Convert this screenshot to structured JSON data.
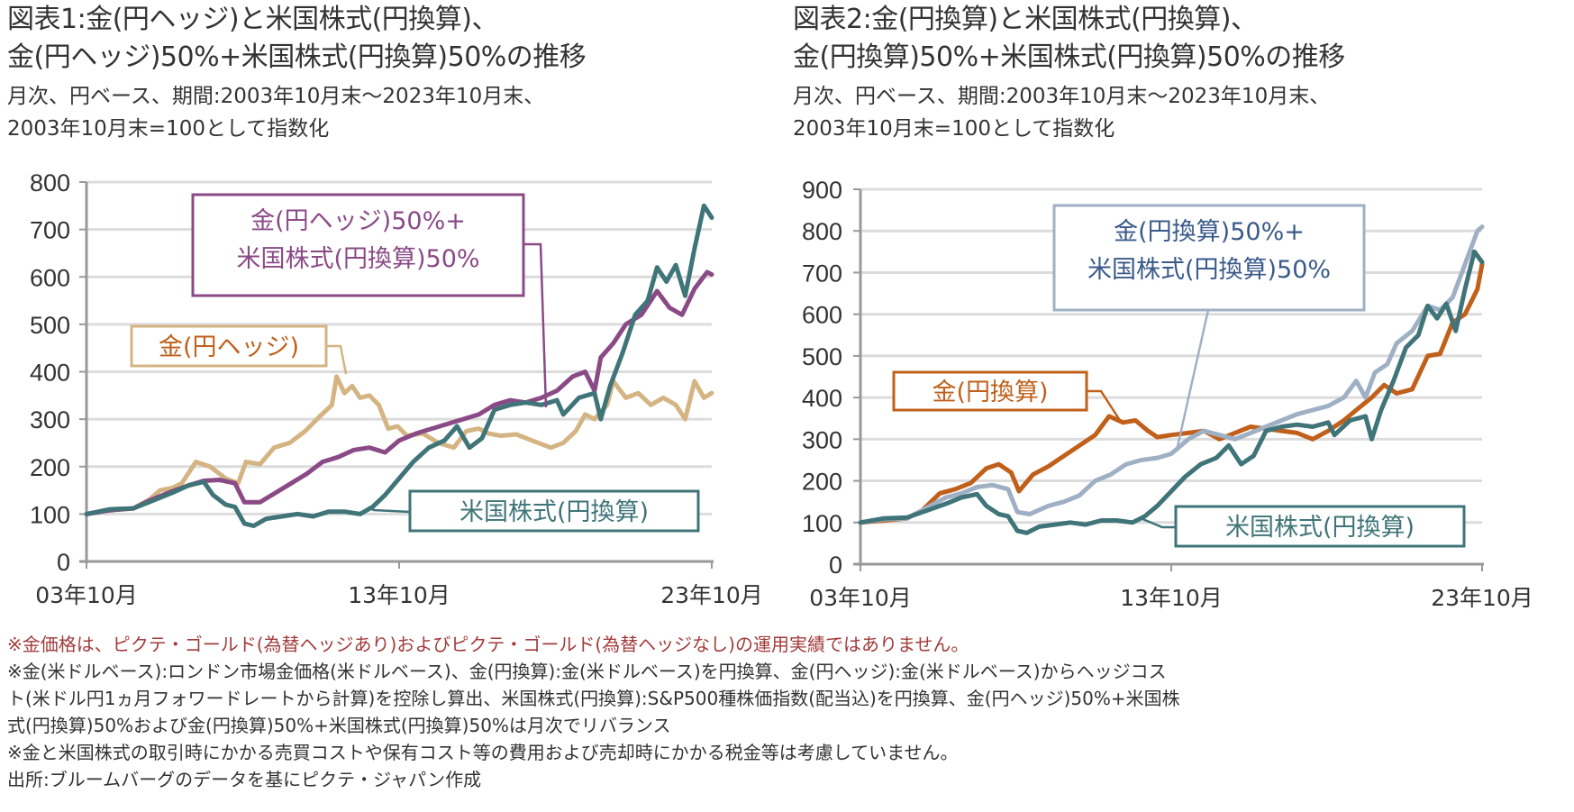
{
  "chart_data": [
    {
      "type": "line",
      "title": "図表1:金(円ヘッジ)と米国株式(円換算)、金(円ヘッジ)50%+米国株式(円換算)50%の推移",
      "title_lines": [
        "図表1:金(円ヘッジ)と米国株式(円換算)、",
        "金(円ヘッジ)50%+米国株式(円換算)50%の推移"
      ],
      "subtitle_lines": [
        "月次、円ベース、期間:2003年10月末〜2023年10月末、",
        "2003年10月末=100として指数化"
      ],
      "xlabel": "",
      "ylabel": "",
      "ylim": [
        0,
        800
      ],
      "yticks": [
        0,
        100,
        200,
        300,
        400,
        500,
        600,
        700,
        800
      ],
      "xlim": [
        2003.75,
        2023.75
      ],
      "xticks": [
        {
          "x": 2003.75,
          "label": "03年10月"
        },
        {
          "x": 2013.75,
          "label": "13年10月"
        },
        {
          "x": 2023.75,
          "label": "23年10月"
        }
      ],
      "grid": true,
      "series": [
        {
          "name": "金(円ヘッジ)",
          "color": "#d4b483",
          "label_lines": [
            "金(円ヘッジ)"
          ],
          "label_text_color": "#c0601a",
          "x": [
            2003.75,
            2004.5,
            2005.25,
            2005.75,
            2006.1,
            2006.5,
            2006.8,
            2007.25,
            2007.7,
            2008.2,
            2008.6,
            2008.85,
            2009.3,
            2009.75,
            2010.25,
            2010.75,
            2011.2,
            2011.6,
            2011.75,
            2012.0,
            2012.25,
            2012.5,
            2012.8,
            2013.1,
            2013.4,
            2013.7,
            2014.0,
            2014.5,
            2015.0,
            2015.5,
            2015.9,
            2016.3,
            2016.6,
            2017.0,
            2017.5,
            2018.0,
            2018.6,
            2019.0,
            2019.4,
            2019.7,
            2020.0,
            2020.4,
            2020.6,
            2021.0,
            2021.4,
            2021.8,
            2022.2,
            2022.6,
            2022.9,
            2023.2,
            2023.5,
            2023.75
          ],
          "values": [
            100,
            108,
            112,
            130,
            150,
            155,
            165,
            210,
            200,
            175,
            165,
            210,
            205,
            240,
            250,
            275,
            305,
            330,
            390,
            355,
            370,
            345,
            350,
            330,
            280,
            285,
            265,
            270,
            250,
            240,
            275,
            280,
            270,
            265,
            268,
            255,
            240,
            250,
            275,
            310,
            300,
            330,
            380,
            345,
            355,
            330,
            345,
            330,
            300,
            380,
            345,
            355
          ]
        },
        {
          "name": "米国株式(円換算)",
          "color": "#3f7478",
          "label_lines": [
            "米国株式(円換算)"
          ],
          "label_text_color": "#3f7478",
          "x": [
            2003.75,
            2004.5,
            2005.25,
            2005.75,
            2006.5,
            2007.0,
            2007.5,
            2007.8,
            2008.2,
            2008.5,
            2008.8,
            2009.1,
            2009.5,
            2010.0,
            2010.5,
            2011.0,
            2011.5,
            2012.0,
            2012.5,
            2012.9,
            2013.3,
            2013.75,
            2014.2,
            2014.7,
            2015.2,
            2015.6,
            2016.0,
            2016.4,
            2016.8,
            2017.3,
            2017.8,
            2018.3,
            2018.8,
            2019.0,
            2019.5,
            2020.0,
            2020.2,
            2020.5,
            2020.9,
            2021.3,
            2021.7,
            2022.0,
            2022.3,
            2022.6,
            2022.9,
            2023.2,
            2023.5,
            2023.75
          ],
          "values": [
            100,
            110,
            112,
            125,
            145,
            160,
            168,
            140,
            120,
            115,
            80,
            75,
            90,
            95,
            100,
            95,
            105,
            105,
            100,
            115,
            140,
            175,
            210,
            240,
            255,
            285,
            240,
            260,
            320,
            330,
            335,
            330,
            340,
            310,
            345,
            355,
            300,
            370,
            440,
            520,
            550,
            620,
            590,
            625,
            560,
            660,
            750,
            725
          ]
        },
        {
          "name": "金(円ヘッジ)50%+米国株式(円換算)50%",
          "color": "#8a4a86",
          "label_lines": [
            "金(円ヘッジ)50%+",
            "米国株式(円換算)50%"
          ],
          "label_text_color": "#8a4a86",
          "x": [
            2003.75,
            2004.5,
            2005.25,
            2005.75,
            2006.5,
            2007.0,
            2007.5,
            2008.0,
            2008.5,
            2008.8,
            2009.3,
            2009.8,
            2010.3,
            2010.8,
            2011.3,
            2011.8,
            2012.3,
            2012.8,
            2013.3,
            2013.75,
            2014.3,
            2014.8,
            2015.3,
            2015.8,
            2016.3,
            2016.8,
            2017.3,
            2017.8,
            2018.3,
            2018.8,
            2019.3,
            2019.7,
            2020.0,
            2020.2,
            2020.6,
            2021.0,
            2021.5,
            2022.0,
            2022.4,
            2022.8,
            2023.2,
            2023.6,
            2023.75
          ],
          "values": [
            100,
            108,
            112,
            128,
            148,
            160,
            170,
            172,
            165,
            125,
            125,
            145,
            165,
            185,
            210,
            220,
            235,
            240,
            230,
            255,
            270,
            280,
            290,
            300,
            310,
            330,
            340,
            335,
            345,
            360,
            390,
            400,
            360,
            430,
            460,
            500,
            520,
            570,
            535,
            520,
            575,
            610,
            605
          ]
        }
      ]
    },
    {
      "type": "line",
      "title": "図表2:金(円換算)と米国株式(円換算)、金(円換算)50%+米国株式(円換算)50%の推移",
      "title_lines": [
        "図表2:金(円換算)と米国株式(円換算)、",
        "金(円換算)50%+米国株式(円換算)50%の推移"
      ],
      "subtitle_lines": [
        "月次、円ベース、期間:2003年10月末〜2023年10月末、",
        "2003年10月末=100として指数化"
      ],
      "xlabel": "",
      "ylabel": "",
      "ylim": [
        0,
        900
      ],
      "yticks": [
        0,
        100,
        200,
        300,
        400,
        500,
        600,
        700,
        800,
        900
      ],
      "xlim": [
        2003.75,
        2023.75
      ],
      "xticks": [
        {
          "x": 2003.75,
          "label": "03年10月"
        },
        {
          "x": 2013.75,
          "label": "13年10月"
        },
        {
          "x": 2023.75,
          "label": "23年10月"
        }
      ],
      "grid": true,
      "series": [
        {
          "name": "金(円換算)",
          "color": "#c0601a",
          "label_lines": [
            "金(円換算)"
          ],
          "label_text_color": "#c0601a",
          "x": [
            2003.75,
            2004.5,
            2005.25,
            2005.75,
            2006.3,
            2006.8,
            2007.3,
            2007.8,
            2008.2,
            2008.6,
            2008.85,
            2009.3,
            2009.8,
            2010.3,
            2010.8,
            2011.3,
            2011.75,
            2012.2,
            2012.6,
            2013.0,
            2013.3,
            2013.75,
            2014.3,
            2014.8,
            2015.3,
            2015.8,
            2016.3,
            2016.8,
            2017.3,
            2017.8,
            2018.3,
            2018.8,
            2019.3,
            2019.7,
            2020.2,
            2020.6,
            2021.0,
            2021.5,
            2022.0,
            2022.4,
            2022.8,
            2023.2,
            2023.6,
            2023.75
          ],
          "values": [
            100,
            105,
            110,
            130,
            170,
            180,
            195,
            230,
            240,
            220,
            175,
            215,
            235,
            260,
            285,
            310,
            355,
            340,
            345,
            320,
            305,
            310,
            315,
            320,
            300,
            315,
            330,
            325,
            320,
            315,
            300,
            320,
            345,
            370,
            400,
            430,
            410,
            420,
            500,
            505,
            580,
            600,
            660,
            720
          ]
        },
        {
          "name": "米国株式(円換算)",
          "color": "#3f7478",
          "label_lines": [
            "米国株式(円換算)"
          ],
          "label_text_color": "#3f7478",
          "x": [
            2003.75,
            2004.5,
            2005.25,
            2005.75,
            2006.5,
            2007.0,
            2007.5,
            2007.8,
            2008.2,
            2008.5,
            2008.8,
            2009.1,
            2009.5,
            2010.0,
            2010.5,
            2011.0,
            2011.5,
            2012.0,
            2012.5,
            2012.9,
            2013.3,
            2013.75,
            2014.2,
            2014.7,
            2015.2,
            2015.6,
            2016.0,
            2016.4,
            2016.8,
            2017.3,
            2017.8,
            2018.3,
            2018.8,
            2019.0,
            2019.5,
            2020.0,
            2020.2,
            2020.5,
            2020.9,
            2021.3,
            2021.7,
            2022.0,
            2022.3,
            2022.6,
            2022.9,
            2023.2,
            2023.5,
            2023.75
          ],
          "values": [
            100,
            110,
            112,
            125,
            145,
            160,
            168,
            140,
            120,
            115,
            80,
            75,
            90,
            95,
            100,
            95,
            105,
            105,
            100,
            115,
            140,
            175,
            210,
            240,
            255,
            285,
            240,
            260,
            320,
            330,
            335,
            330,
            340,
            310,
            345,
            355,
            300,
            370,
            440,
            520,
            550,
            620,
            590,
            625,
            560,
            660,
            750,
            725
          ]
        },
        {
          "name": "金(円換算)50%+米国株式(円換算)50%",
          "color": "#9fb0c4",
          "label_lines": [
            "金(円換算)50%+",
            "米国株式(円換算)50%"
          ],
          "label_text_color": "#3a5a8a",
          "x": [
            2003.75,
            2004.5,
            2005.25,
            2005.75,
            2006.5,
            2007.0,
            2007.5,
            2008.0,
            2008.5,
            2008.8,
            2009.2,
            2009.8,
            2010.3,
            2010.8,
            2011.3,
            2011.8,
            2012.3,
            2012.8,
            2013.3,
            2013.75,
            2014.3,
            2014.8,
            2015.3,
            2015.8,
            2016.3,
            2016.8,
            2017.3,
            2017.8,
            2018.3,
            2018.8,
            2019.3,
            2019.7,
            2020.0,
            2020.3,
            2020.7,
            2021.0,
            2021.5,
            2022.0,
            2022.4,
            2022.8,
            2023.2,
            2023.6,
            2023.75
          ],
          "values": [
            100,
            108,
            110,
            130,
            160,
            170,
            185,
            190,
            180,
            125,
            120,
            140,
            150,
            165,
            200,
            215,
            240,
            250,
            255,
            265,
            300,
            320,
            310,
            300,
            315,
            330,
            345,
            360,
            370,
            380,
            400,
            440,
            400,
            460,
            480,
            530,
            560,
            620,
            610,
            640,
            720,
            800,
            810
          ]
        }
      ]
    }
  ],
  "notes": {
    "disclaimer": "※金価格は、ピクテ・ゴールド(為替ヘッジあり)およびピクテ・ゴールド(為替ヘッジなし)の運用実績ではありません。",
    "definitions_lines": [
      "※金(米ドルベース):ロンドン市場金価格(米ドルベース)、金(円換算):金(米ドルベース)を円換算、金(円ヘッジ):金(米ドルベース)からヘッジコス",
      "ト(米ドル円1ヵ月フォワードレートから計算)を控除し算出、米国株式(円換算):S&P500種株価指数(配当込)を円換算、金(円ヘッジ)50%+米国株",
      "式(円換算)50%および金(円換算)50%+米国株式(円換算)50%は月次でリバランス"
    ],
    "costs": "※金と米国株式の取引時にかかる売買コストや保有コスト等の費用および売却時にかかる税金等は考慮していません。",
    "source": "出所:ブルームバーグのデータを基にピクテ・ジャパン作成"
  }
}
